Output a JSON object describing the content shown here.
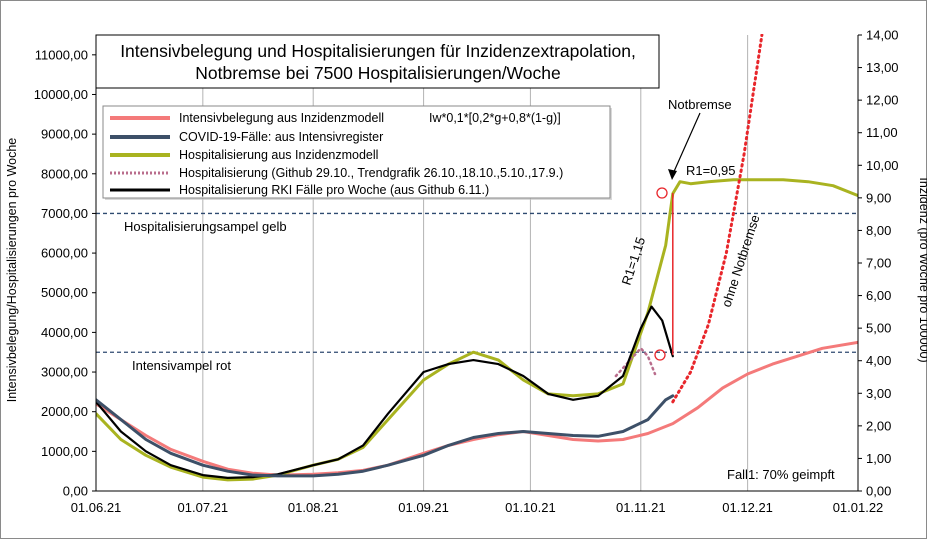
{
  "chart_data": {
    "type": "line",
    "title_lines": [
      "Intensivbelegung und Hospitalisierungen für Inzidenzextrapolation,",
      "Notbremse bei 7500 Hospitalisierungen/Woche"
    ],
    "ylabel_left": "Intensivbelegung/Hospitalisierungen pro Woche",
    "ylabel_right": "Inzidenz (pro Woche pro 100000)",
    "ylim_left": [
      0,
      11500
    ],
    "ylim_right": [
      0,
      14
    ],
    "xlim": [
      "2021-06-01",
      "2022-01-01"
    ],
    "x_ticks": [
      {
        "date": "2021-06-01",
        "label": "01.06.21"
      },
      {
        "date": "2021-07-01",
        "label": "01.07.21"
      },
      {
        "date": "2021-08-01",
        "label": "01.08.21"
      },
      {
        "date": "2021-09-01",
        "label": "01.09.21"
      },
      {
        "date": "2021-10-01",
        "label": "01.10.21"
      },
      {
        "date": "2021-11-01",
        "label": "01.11.21"
      },
      {
        "date": "2021-12-01",
        "label": "01.12.21"
      },
      {
        "date": "2022-01-01",
        "label": "01.01.22"
      }
    ],
    "y_ticks_left": [
      {
        "v": 0,
        "label": "0,00"
      },
      {
        "v": 1000,
        "label": "1000,00"
      },
      {
        "v": 2000,
        "label": "2000,00"
      },
      {
        "v": 3000,
        "label": "3000,00"
      },
      {
        "v": 4000,
        "label": "4000,00"
      },
      {
        "v": 5000,
        "label": "5000,00"
      },
      {
        "v": 6000,
        "label": "6000,00"
      },
      {
        "v": 7000,
        "label": "7000,00"
      },
      {
        "v": 8000,
        "label": "8000,00"
      },
      {
        "v": 9000,
        "label": "9000,00"
      },
      {
        "v": 10000,
        "label": "10000,00"
      },
      {
        "v": 11000,
        "label": "11000,00"
      }
    ],
    "y_ticks_right": [
      {
        "v": 0,
        "label": "0,00"
      },
      {
        "v": 1,
        "label": "1,00"
      },
      {
        "v": 2,
        "label": "2,00"
      },
      {
        "v": 3,
        "label": "3,00"
      },
      {
        "v": 4,
        "label": "4,00"
      },
      {
        "v": 5,
        "label": "5,00"
      },
      {
        "v": 6,
        "label": "6,00"
      },
      {
        "v": 7,
        "label": "7,00"
      },
      {
        "v": 8,
        "label": "8,00"
      },
      {
        "v": 9,
        "label": "9,00"
      },
      {
        "v": 10,
        "label": "10,00"
      },
      {
        "v": 11,
        "label": "11,00"
      },
      {
        "v": 12,
        "label": "12,00"
      },
      {
        "v": 13,
        "label": "13,00"
      },
      {
        "v": 14,
        "label": "14,00"
      }
    ],
    "gridlines": "vertical",
    "legend_placement": "top-left",
    "legend_note": "Iw*0,1*[0,2*g+0,8*(1-g)]",
    "legend": [
      {
        "label": "Intensivbelegung aus Inzidenzmodell",
        "color": "#f47a7a",
        "style": "solid"
      },
      {
        "label": "COVID-19-Fälle: aus Intensivregister",
        "color": "#3d5068",
        "style": "solid"
      },
      {
        "label": "Hospitalisierung aus Inzidenzmodell",
        "color": "#a9b320",
        "style": "solid"
      },
      {
        "label": "Hospitalisierung (Github 29.10., Trendgrafik 26.10.,18.10.,5.10.,17.9.)",
        "color": "#b96d8c",
        "style": "dotted"
      },
      {
        "label": "Hospitalisierung RKI Fälle pro Woche (aus Github 6.11.)",
        "color": "#000000",
        "style": "solid"
      }
    ],
    "thresholds": [
      {
        "label": "Hospitalisierungsampel gelb",
        "value": 7000,
        "color": "#2e4a70"
      },
      {
        "label": "Intensivampel rot",
        "value": 3500,
        "color": "#2e4a70"
      }
    ],
    "annotations": {
      "notbremse": "Notbremse",
      "r1_115": "R1=1,15",
      "r1_095": "R1=0,95",
      "ohne_notbremse": "ohne Notbremse",
      "fall": "Fall1: 70% geimpft"
    },
    "series": [
      {
        "name": "Intensivbelegung aus Inzidenzmodell",
        "color": "#f47a7a",
        "axis": "left",
        "style": "solid",
        "points": [
          [
            "2021-06-01",
            2200
          ],
          [
            "2021-06-08",
            1800
          ],
          [
            "2021-06-15",
            1400
          ],
          [
            "2021-06-22",
            1050
          ],
          [
            "2021-07-01",
            750
          ],
          [
            "2021-07-08",
            550
          ],
          [
            "2021-07-15",
            450
          ],
          [
            "2021-07-22",
            400
          ],
          [
            "2021-08-01",
            420
          ],
          [
            "2021-08-08",
            460
          ],
          [
            "2021-08-15",
            520
          ],
          [
            "2021-08-22",
            650
          ],
          [
            "2021-09-01",
            950
          ],
          [
            "2021-09-08",
            1150
          ],
          [
            "2021-09-15",
            1300
          ],
          [
            "2021-09-22",
            1420
          ],
          [
            "2021-09-29",
            1500
          ],
          [
            "2021-10-06",
            1400
          ],
          [
            "2021-10-13",
            1300
          ],
          [
            "2021-10-20",
            1260
          ],
          [
            "2021-10-27",
            1300
          ],
          [
            "2021-11-03",
            1450
          ],
          [
            "2021-11-10",
            1700
          ],
          [
            "2021-11-17",
            2100
          ],
          [
            "2021-11-24",
            2600
          ],
          [
            "2021-12-01",
            2950
          ],
          [
            "2021-12-08",
            3200
          ],
          [
            "2021-12-15",
            3400
          ],
          [
            "2021-12-22",
            3600
          ],
          [
            "2022-01-01",
            3750
          ]
        ]
      },
      {
        "name": "Hospitalisierung aus Inzidenzmodell",
        "color": "#a9b320",
        "axis": "left",
        "style": "solid",
        "points": [
          [
            "2021-06-01",
            1950
          ],
          [
            "2021-06-08",
            1300
          ],
          [
            "2021-06-15",
            900
          ],
          [
            "2021-06-22",
            600
          ],
          [
            "2021-07-01",
            350
          ],
          [
            "2021-07-08",
            280
          ],
          [
            "2021-07-15",
            300
          ],
          [
            "2021-07-22",
            400
          ],
          [
            "2021-08-01",
            650
          ],
          [
            "2021-08-08",
            800
          ],
          [
            "2021-08-15",
            1100
          ],
          [
            "2021-08-22",
            1800
          ],
          [
            "2021-09-01",
            2800
          ],
          [
            "2021-09-08",
            3200
          ],
          [
            "2021-09-15",
            3500
          ],
          [
            "2021-09-22",
            3300
          ],
          [
            "2021-09-29",
            2800
          ],
          [
            "2021-10-06",
            2450
          ],
          [
            "2021-10-13",
            2400
          ],
          [
            "2021-10-20",
            2450
          ],
          [
            "2021-10-27",
            2700
          ],
          [
            "2021-11-03",
            4500
          ],
          [
            "2021-11-08",
            6200
          ],
          [
            "2021-11-10",
            7500
          ],
          [
            "2021-11-12",
            7800
          ],
          [
            "2021-11-15",
            7750
          ],
          [
            "2021-11-20",
            7800
          ],
          [
            "2021-11-27",
            7850
          ],
          [
            "2021-12-04",
            7850
          ],
          [
            "2021-12-11",
            7850
          ],
          [
            "2021-12-18",
            7800
          ],
          [
            "2021-12-25",
            7700
          ],
          [
            "2022-01-01",
            7450
          ]
        ]
      },
      {
        "name": "Hospitalisierung (Github 29.10., Trendgrafik 26.10.,18.10.,5.10.,17.9.)",
        "color": "#b96d8c",
        "axis": "left",
        "style": "dotted",
        "points": [
          [
            "2021-10-25",
            2900
          ],
          [
            "2021-10-29",
            3300
          ],
          [
            "2021-11-01",
            3600
          ],
          [
            "2021-11-03",
            3400
          ],
          [
            "2021-11-05",
            2950
          ]
        ]
      },
      {
        "name": "Hospitalisierung RKI Fälle pro Woche (aus Github 6.11.)",
        "color": "#000000",
        "axis": "left",
        "style": "solid",
        "points": [
          [
            "2021-06-01",
            2250
          ],
          [
            "2021-06-08",
            1500
          ],
          [
            "2021-06-15",
            1000
          ],
          [
            "2021-06-22",
            650
          ],
          [
            "2021-07-01",
            400
          ],
          [
            "2021-07-08",
            330
          ],
          [
            "2021-07-15",
            350
          ],
          [
            "2021-07-22",
            420
          ],
          [
            "2021-08-01",
            650
          ],
          [
            "2021-08-08",
            800
          ],
          [
            "2021-08-15",
            1150
          ],
          [
            "2021-08-22",
            1950
          ],
          [
            "2021-09-01",
            3000
          ],
          [
            "2021-09-08",
            3200
          ],
          [
            "2021-09-15",
            3300
          ],
          [
            "2021-09-22",
            3200
          ],
          [
            "2021-09-29",
            2900
          ],
          [
            "2021-10-06",
            2450
          ],
          [
            "2021-10-13",
            2300
          ],
          [
            "2021-10-20",
            2400
          ],
          [
            "2021-10-27",
            2900
          ],
          [
            "2021-11-01",
            4100
          ],
          [
            "2021-11-04",
            4650
          ],
          [
            "2021-11-07",
            4300
          ],
          [
            "2021-11-10",
            3400
          ]
        ]
      },
      {
        "name": "COVID-19-Fälle: aus Intensivregister",
        "color": "#3d5068",
        "axis": "left",
        "style": "solid",
        "points": [
          [
            "2021-06-01",
            2300
          ],
          [
            "2021-06-08",
            1800
          ],
          [
            "2021-06-15",
            1300
          ],
          [
            "2021-06-22",
            950
          ],
          [
            "2021-07-01",
            650
          ],
          [
            "2021-07-08",
            500
          ],
          [
            "2021-07-15",
            400
          ],
          [
            "2021-07-22",
            380
          ],
          [
            "2021-08-01",
            380
          ],
          [
            "2021-08-08",
            420
          ],
          [
            "2021-08-15",
            500
          ],
          [
            "2021-08-22",
            650
          ],
          [
            "2021-09-01",
            900
          ],
          [
            "2021-09-08",
            1150
          ],
          [
            "2021-09-15",
            1350
          ],
          [
            "2021-09-22",
            1450
          ],
          [
            "2021-09-29",
            1500
          ],
          [
            "2021-10-06",
            1450
          ],
          [
            "2021-10-13",
            1400
          ],
          [
            "2021-10-20",
            1380
          ],
          [
            "2021-10-27",
            1500
          ],
          [
            "2021-11-03",
            1800
          ],
          [
            "2021-11-08",
            2300
          ],
          [
            "2021-11-10",
            2400
          ]
        ]
      },
      {
        "name": "Intensivbelegung ohne Notbremse",
        "color": "#e8262b",
        "axis": "left",
        "style": "dotted",
        "points": [
          [
            "2021-11-10",
            2250
          ],
          [
            "2021-11-15",
            3000
          ],
          [
            "2021-11-20",
            4200
          ],
          [
            "2021-11-25",
            6000
          ],
          [
            "2021-11-30",
            8500
          ],
          [
            "2021-12-05",
            11500
          ]
        ]
      },
      {
        "name": "Sprung Notbremse",
        "color": "#e8262b",
        "axis": "left",
        "style": "solid",
        "points": [
          [
            "2021-11-10",
            3450
          ],
          [
            "2021-11-10",
            7500
          ]
        ]
      }
    ]
  }
}
